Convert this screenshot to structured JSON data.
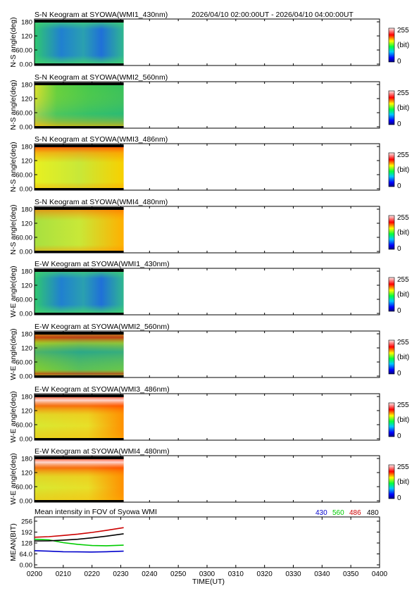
{
  "header": {
    "time_range": "2026/04/10 02:00:00UT - 2026/04/10 04:00:00UT"
  },
  "colorbar": {
    "max_label": "255",
    "unit_label": "(bit)",
    "min_label": "0"
  },
  "keogram_y_ticks": [
    "180",
    "120",
    "60.00",
    "0.00"
  ],
  "chart_data": [
    {
      "type": "heatmap",
      "title": "S-N Keogram at SYOWA(WMI1_430nm)",
      "ylabel": "N-S angle(deg)",
      "ylim": [
        0,
        180
      ],
      "data_extent_minutes": [
        0,
        31
      ],
      "palette": "blue",
      "colorbar_range": [
        0,
        255
      ]
    },
    {
      "type": "heatmap",
      "title": "S-N Keogram at SYOWA(WMI2_560nm)",
      "ylabel": "N-S angle(deg)",
      "ylim": [
        0,
        180
      ],
      "data_extent_minutes": [
        0,
        31
      ],
      "palette": "green",
      "colorbar_range": [
        0,
        255
      ]
    },
    {
      "type": "heatmap",
      "title": "S-N Keogram at SYOWA(WMI3_486nm)",
      "ylabel": "N-S angle(deg)",
      "ylim": [
        0,
        180
      ],
      "data_extent_minutes": [
        0,
        31
      ],
      "palette": "warm",
      "colorbar_range": [
        0,
        255
      ]
    },
    {
      "type": "heatmap",
      "title": "S-N Keogram at SYOWA(WMI4_480nm)",
      "ylabel": "N-S angle(deg)",
      "ylim": [
        0,
        180
      ],
      "data_extent_minutes": [
        0,
        31
      ],
      "palette": "warm2",
      "colorbar_range": [
        0,
        255
      ]
    },
    {
      "type": "heatmap",
      "title": "E-W Keogram at SYOWA(WMI1_430nm)",
      "ylabel": "W-E angle(deg)",
      "ylim": [
        0,
        180
      ],
      "data_extent_minutes": [
        0,
        31
      ],
      "palette": "blue",
      "colorbar_range": [
        0,
        255
      ]
    },
    {
      "type": "heatmap",
      "title": "E-W Keogram at SYOWA(WMI2_560nm)",
      "ylabel": "W-E angle(deg)",
      "ylim": [
        0,
        180
      ],
      "data_extent_minutes": [
        0,
        31
      ],
      "palette": "greenred",
      "colorbar_range": [
        0,
        255
      ]
    },
    {
      "type": "heatmap",
      "title": "E-W Keogram at SYOWA(WMI3_486nm)",
      "ylabel": "W-E angle(deg)",
      "ylim": [
        0,
        180
      ],
      "data_extent_minutes": [
        0,
        31
      ],
      "palette": "hot",
      "colorbar_range": [
        0,
        255
      ]
    },
    {
      "type": "heatmap",
      "title": "E-W Keogram at SYOWA(WMI4_480nm)",
      "ylabel": "W-E angle(deg)",
      "ylim": [
        0,
        180
      ],
      "data_extent_minutes": [
        0,
        31
      ],
      "palette": "hot",
      "colorbar_range": [
        0,
        255
      ]
    },
    {
      "type": "line",
      "title": "Mean intensity in FOV of Syowa WMI",
      "xlabel": "TIME(UT)",
      "ylabel": "MEAN(BIT)",
      "x_ticks": [
        "0200",
        "0210",
        "0220",
        "0230",
        "0240",
        "0250",
        "0300",
        "0310",
        "0320",
        "0330",
        "0340",
        "0350",
        "0400"
      ],
      "xlim_minutes": [
        0,
        120
      ],
      "y_ticks": [
        "256",
        "192",
        "128",
        "64.0",
        "0.00"
      ],
      "ylim": [
        0,
        256
      ],
      "series": [
        {
          "name": "430",
          "color": "#0000cc",
          "x": [
            0,
            5,
            10,
            15,
            20,
            25,
            31
          ],
          "y": [
            83,
            80,
            77,
            76,
            75,
            77,
            80
          ]
        },
        {
          "name": "560",
          "color": "#00cc00",
          "x": [
            0,
            5,
            10,
            15,
            20,
            25,
            31
          ],
          "y": [
            150,
            146,
            130,
            120,
            113,
            112,
            115
          ]
        },
        {
          "name": "486",
          "color": "#cc0000",
          "x": [
            0,
            5,
            10,
            15,
            20,
            25,
            31
          ],
          "y": [
            162,
            165,
            172,
            180,
            190,
            202,
            218
          ]
        },
        {
          "name": "480",
          "color": "#000000",
          "x": [
            0,
            5,
            10,
            15,
            20,
            25,
            31
          ],
          "y": [
            140,
            141,
            145,
            150,
            158,
            168,
            182
          ]
        }
      ]
    }
  ]
}
